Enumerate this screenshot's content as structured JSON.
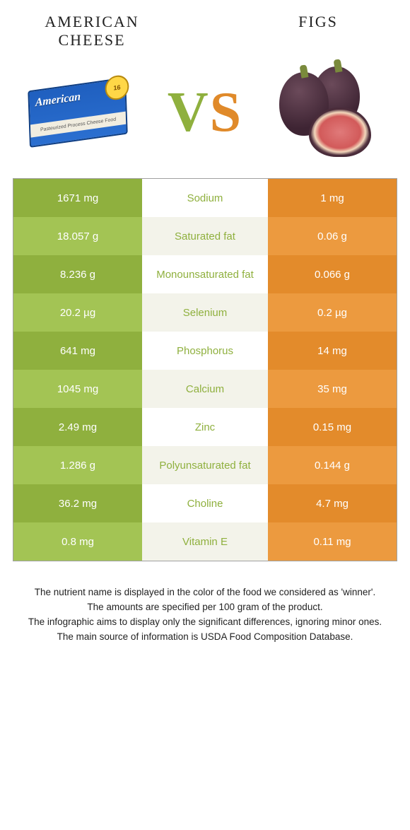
{
  "header": {
    "left_title": "AMERICAN CHEESE",
    "right_title": "FIGS",
    "vs_v": "V",
    "vs_s": "S"
  },
  "colors": {
    "left_dark": "#8fb03e",
    "left_light": "#a3c454",
    "right_dark": "#e38b2b",
    "right_light": "#ec9a3f",
    "mid_text_left": "#de8a2c",
    "mid_text_right": "#8fb03e"
  },
  "cheese_icon": {
    "brand": "American",
    "badge": "16",
    "band_text": "Pasteurized Process Cheese Food"
  },
  "rows": [
    {
      "left": "1671 mg",
      "label": "Sodium",
      "right": "1 mg",
      "winner": "left"
    },
    {
      "left": "18.057 g",
      "label": "Saturated fat",
      "right": "0.06 g",
      "winner": "left"
    },
    {
      "left": "8.236 g",
      "label": "Monounsaturated fat",
      "right": "0.066 g",
      "winner": "left"
    },
    {
      "left": "20.2 µg",
      "label": "Selenium",
      "right": "0.2 µg",
      "winner": "left"
    },
    {
      "left": "641 mg",
      "label": "Phosphorus",
      "right": "14 mg",
      "winner": "left"
    },
    {
      "left": "1045 mg",
      "label": "Calcium",
      "right": "35 mg",
      "winner": "left"
    },
    {
      "left": "2.49 mg",
      "label": "Zinc",
      "right": "0.15 mg",
      "winner": "left"
    },
    {
      "left": "1.286 g",
      "label": "Polyunsaturated fat",
      "right": "0.144 g",
      "winner": "left"
    },
    {
      "left": "36.2 mg",
      "label": "Choline",
      "right": "4.7 mg",
      "winner": "left"
    },
    {
      "left": "0.8 mg",
      "label": "Vitamin E",
      "right": "0.11 mg",
      "winner": "left"
    }
  ],
  "footer": {
    "line1": "The nutrient name is displayed in the color of the food we considered as 'winner'.",
    "line2": "The amounts are specified per 100 gram of the product.",
    "line3": "The infographic aims to display only the significant differences, ignoring minor ones.",
    "line4": "The main source of information is USDA Food Composition Database."
  }
}
